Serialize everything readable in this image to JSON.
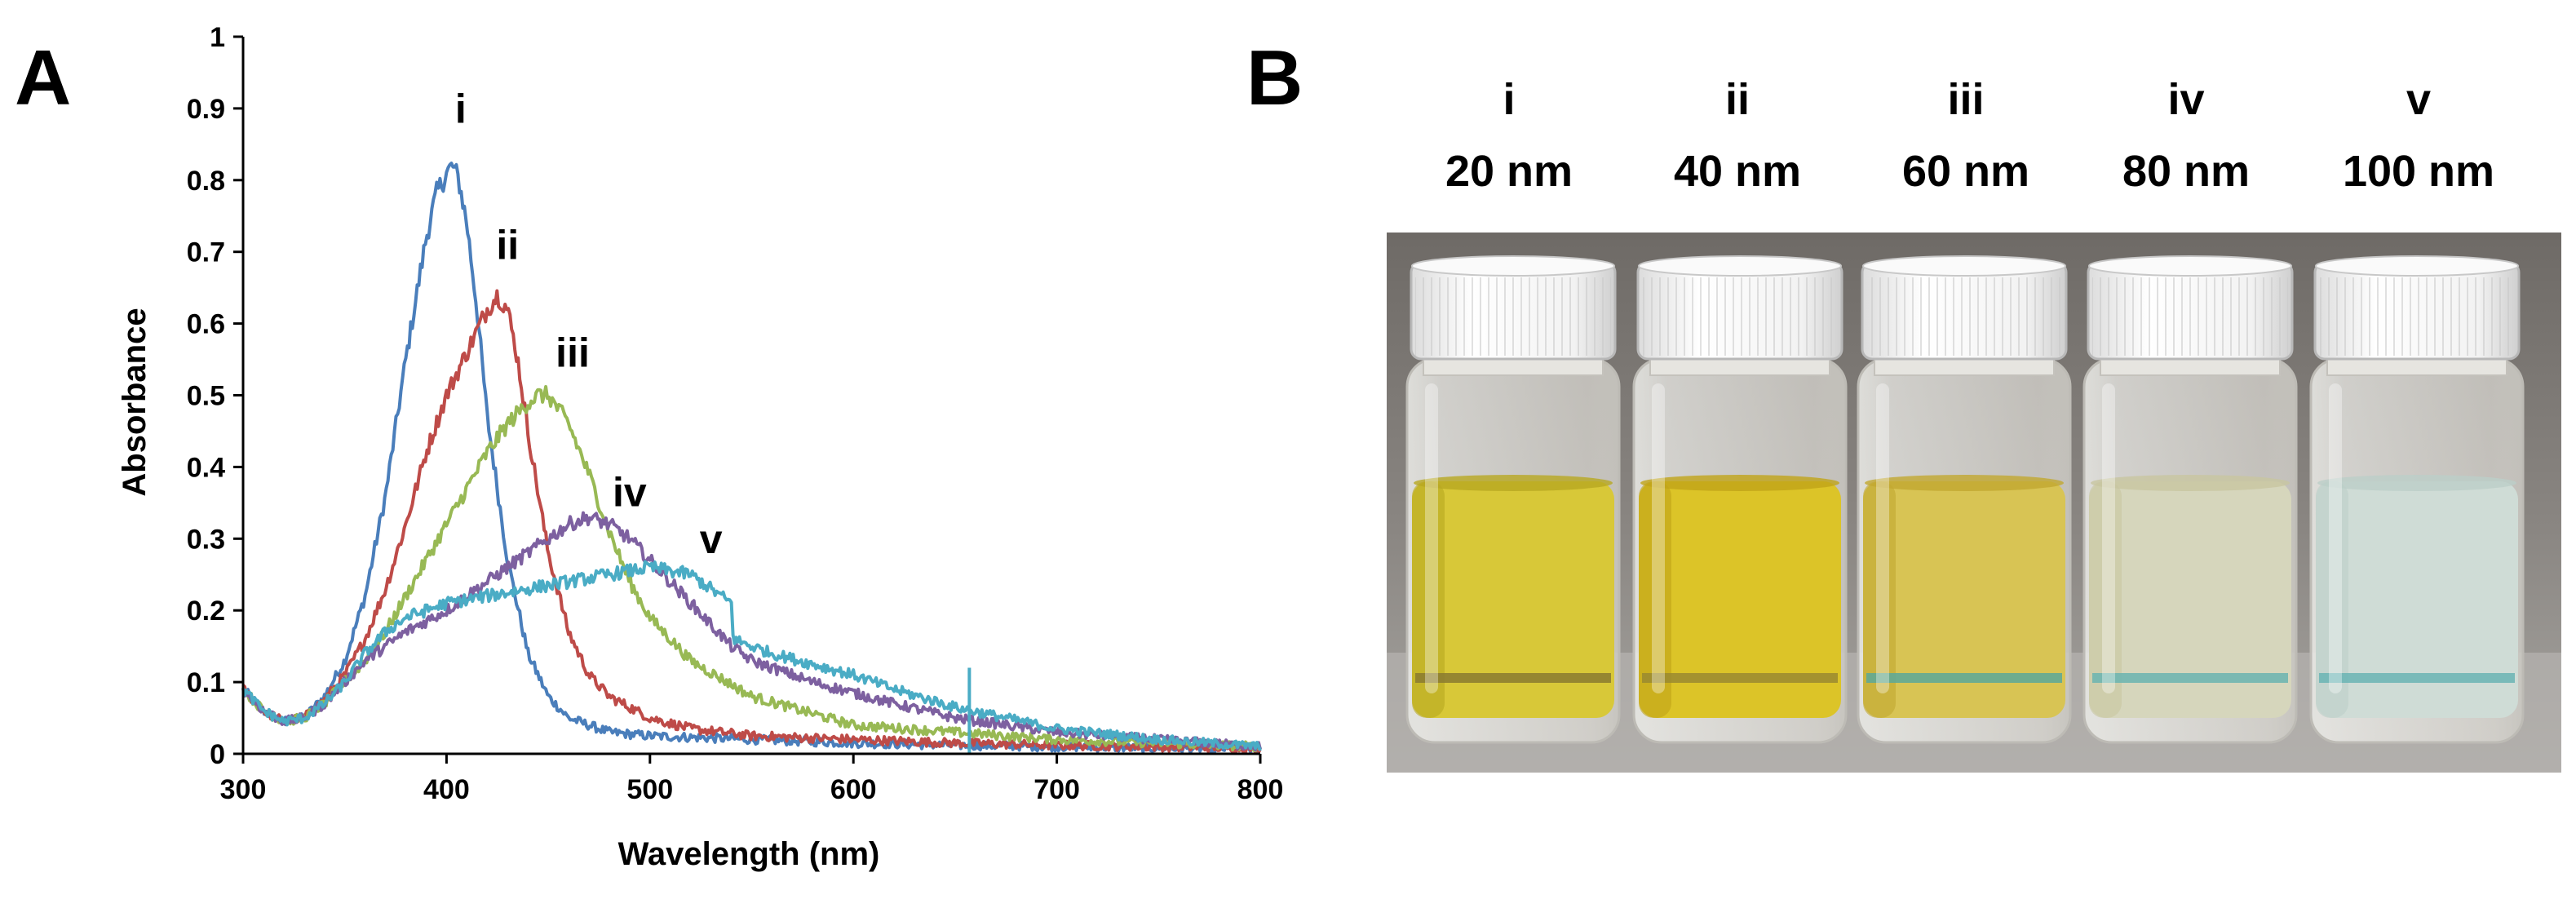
{
  "panel_a_label": "A",
  "panel_b_label": "B",
  "chart_data": {
    "type": "line",
    "title": "",
    "xlabel": "Wavelength (nm)",
    "ylabel": "Absorbance",
    "xlim": [
      300,
      800
    ],
    "ylim": [
      0,
      1
    ],
    "x_ticks": [
      "300",
      "400",
      "500",
      "600",
      "700",
      "800"
    ],
    "y_ticks": [
      "0",
      "0.1",
      "0.2",
      "0.3",
      "0.4",
      "0.5",
      "0.6",
      "0.7",
      "0.8",
      "0.9",
      "1"
    ],
    "grid": false,
    "series": [
      {
        "name": "i",
        "color": "#4a7ebb",
        "x": [
          300,
          310,
          320,
          330,
          340,
          350,
          360,
          370,
          380,
          390,
          395,
          400,
          403,
          406,
          410,
          415,
          420,
          430,
          440,
          450,
          460,
          480,
          500,
          550,
          600,
          650,
          700,
          750,
          800
        ],
        "y": [
          0.09,
          0.06,
          0.045,
          0.05,
          0.08,
          0.13,
          0.22,
          0.36,
          0.55,
          0.72,
          0.78,
          0.81,
          0.82,
          0.8,
          0.74,
          0.62,
          0.47,
          0.27,
          0.14,
          0.08,
          0.05,
          0.03,
          0.025,
          0.02,
          0.015,
          0.012,
          0.01,
          0.008,
          0.007
        ]
      },
      {
        "name": "ii",
        "color": "#be4b48",
        "x": [
          300,
          310,
          320,
          330,
          340,
          350,
          360,
          370,
          380,
          390,
          400,
          410,
          420,
          425,
          430,
          435,
          440,
          450,
          460,
          470,
          480,
          500,
          520,
          550,
          600,
          650,
          700,
          750,
          800
        ],
        "y": [
          0.09,
          0.06,
          0.045,
          0.05,
          0.075,
          0.11,
          0.16,
          0.23,
          0.32,
          0.42,
          0.5,
          0.56,
          0.62,
          0.64,
          0.62,
          0.55,
          0.45,
          0.28,
          0.17,
          0.11,
          0.08,
          0.05,
          0.035,
          0.025,
          0.02,
          0.015,
          0.012,
          0.01,
          0.008
        ]
      },
      {
        "name": "iii",
        "color": "#98b954",
        "x": [
          300,
          310,
          320,
          330,
          340,
          350,
          360,
          370,
          380,
          390,
          400,
          410,
          420,
          430,
          440,
          445,
          450,
          460,
          470,
          480,
          490,
          500,
          520,
          550,
          600,
          650,
          700,
          750,
          800
        ],
        "y": [
          0.09,
          0.06,
          0.045,
          0.05,
          0.07,
          0.1,
          0.13,
          0.17,
          0.22,
          0.27,
          0.32,
          0.37,
          0.42,
          0.46,
          0.49,
          0.5,
          0.5,
          0.46,
          0.39,
          0.31,
          0.24,
          0.19,
          0.13,
          0.08,
          0.04,
          0.03,
          0.02,
          0.015,
          0.01
        ]
      },
      {
        "name": "iv",
        "color": "#7d60a0",
        "x": [
          300,
          310,
          320,
          330,
          340,
          350,
          360,
          380,
          400,
          420,
          440,
          460,
          470,
          480,
          490,
          500,
          510,
          520,
          530,
          540,
          550,
          560,
          580,
          600,
          620,
          650,
          700,
          750,
          800
        ],
        "y": [
          0.09,
          0.06,
          0.045,
          0.05,
          0.07,
          0.1,
          0.13,
          0.17,
          0.2,
          0.24,
          0.28,
          0.32,
          0.33,
          0.32,
          0.3,
          0.27,
          0.24,
          0.21,
          0.18,
          0.15,
          0.13,
          0.12,
          0.1,
          0.085,
          0.07,
          0.05,
          0.03,
          0.02,
          0.01
        ]
      },
      {
        "name": "v",
        "color": "#4aacc5",
        "x": [
          300,
          310,
          320,
          330,
          340,
          350,
          360,
          370,
          380,
          400,
          420,
          440,
          460,
          480,
          500,
          520,
          530,
          540,
          541,
          550,
          560,
          580,
          600,
          620,
          650,
          700,
          750,
          800
        ],
        "y": [
          0.09,
          0.06,
          0.045,
          0.05,
          0.07,
          0.1,
          0.14,
          0.17,
          0.19,
          0.21,
          0.22,
          0.23,
          0.24,
          0.25,
          0.26,
          0.25,
          0.23,
          0.21,
          0.16,
          0.15,
          0.14,
          0.125,
          0.11,
          0.09,
          0.065,
          0.035,
          0.02,
          0.01
        ]
      }
    ],
    "annotations": [
      {
        "text": "i",
        "x": 407,
        "y": 0.88
      },
      {
        "text": "ii",
        "x": 430,
        "y": 0.69
      },
      {
        "text": "iii",
        "x": 462,
        "y": 0.54
      },
      {
        "text": "iv",
        "x": 490,
        "y": 0.345
      },
      {
        "text": "v",
        "x": 530,
        "y": 0.28
      }
    ]
  },
  "vials": [
    {
      "label": "i",
      "size": "20 nm",
      "liquid": "#d8c838",
      "liquid_dark": "#b8a820",
      "meniscus": "#8a7a30"
    },
    {
      "label": "ii",
      "size": "40 nm",
      "liquid": "#dcc428",
      "liquid_dark": "#c0a418",
      "meniscus": "#9a8a30"
    },
    {
      "label": "iii",
      "size": "60 nm",
      "liquid": "#d8c454",
      "liquid_dark": "#c2a830",
      "meniscus": "#5aa89a"
    },
    {
      "label": "iv",
      "size": "80 nm",
      "liquid": "#d6d6bc",
      "liquid_dark": "#c8c6a0",
      "meniscus": "#6ab4b0"
    },
    {
      "label": "v",
      "size": "100 nm",
      "liquid": "#cfdcd6",
      "liquid_dark": "#bccec8",
      "meniscus": "#6ab4b4"
    }
  ]
}
